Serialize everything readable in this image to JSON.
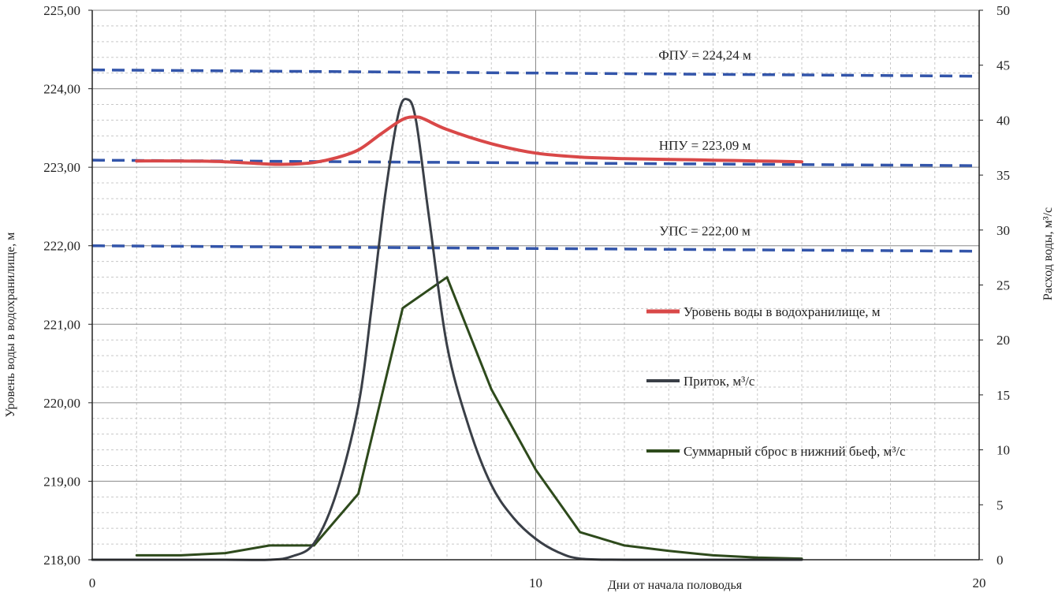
{
  "chart_data": {
    "type": "line",
    "title": "",
    "xlabel": "Дни от начала половодья",
    "ylabel_left": "Уровень воды в водохранилище, м",
    "ylabel_right": "Расход воды, м³/с",
    "xlim": [
      0,
      20
    ],
    "ylim_left": [
      218,
      225
    ],
    "ylim_right": [
      0,
      50
    ],
    "x_ticks": [
      "0",
      "10",
      "20"
    ],
    "y_left_ticks": [
      "218,00",
      "219,00",
      "220,00",
      "221,00",
      "222,00",
      "223,00",
      "224,00",
      "225,00"
    ],
    "y_right_ticks": [
      "0",
      "5",
      "10",
      "15",
      "20",
      "25",
      "30",
      "35",
      "40",
      "45",
      "50"
    ],
    "grid": true,
    "reference_lines": [
      {
        "label": "ФПУ = 224,24 м",
        "y_start": 224.24,
        "y_end": 224.16,
        "axis": "left",
        "color": "#3355aa"
      },
      {
        "label": "НПУ = 223,09 м",
        "y_start": 223.09,
        "y_end": 223.02,
        "axis": "left",
        "color": "#3355aa"
      },
      {
        "label": "УПС = 222,00 м",
        "y_start": 222.0,
        "y_end": 221.93,
        "axis": "left",
        "color": "#3355aa"
      }
    ],
    "series": [
      {
        "name": "Уровень воды в водохранилище, м",
        "axis": "left",
        "color": "#d94848",
        "x": [
          1,
          2,
          3,
          4,
          4.5,
          5,
          5.5,
          6,
          6.5,
          7,
          7.3,
          7.5,
          8,
          9,
          10,
          11,
          12,
          13,
          14,
          15,
          16
        ],
        "y": [
          223.08,
          223.08,
          223.07,
          223.04,
          223.04,
          223.06,
          223.12,
          223.22,
          223.42,
          223.61,
          223.64,
          223.61,
          223.48,
          223.3,
          223.18,
          223.13,
          223.11,
          223.1,
          223.09,
          223.08,
          223.07
        ]
      },
      {
        "name": "Приток, м³/с",
        "axis": "right",
        "color": "#3a3f47",
        "x": [
          0,
          3,
          4,
          4.5,
          5,
          5.5,
          6,
          6.3,
          6.6,
          6.9,
          7.1,
          7.3,
          7.6,
          8,
          8.5,
          9,
          9.5,
          10,
          10.5,
          11,
          12,
          14,
          16
        ],
        "y": [
          0,
          0,
          0,
          0.3,
          1.5,
          6,
          14,
          23,
          33,
          40.5,
          41.9,
          40,
          31,
          19.5,
          12,
          6.8,
          3.8,
          1.9,
          0.7,
          0.1,
          0,
          0,
          0
        ]
      },
      {
        "name": "Суммарный сброс в нижний бьеф, м³/с",
        "axis": "right",
        "color": "#2e4a1c",
        "x": [
          1,
          2,
          3,
          4,
          5,
          6,
          7,
          8,
          9,
          10,
          11,
          12,
          13,
          14,
          15,
          16
        ],
        "y": [
          0.4,
          0.4,
          0.6,
          1.3,
          1.3,
          6,
          22.9,
          25.7,
          15.5,
          8.2,
          2.5,
          1.3,
          0.8,
          0.4,
          0.2,
          0.1
        ]
      }
    ],
    "legend": {
      "placement": "center-right"
    }
  }
}
